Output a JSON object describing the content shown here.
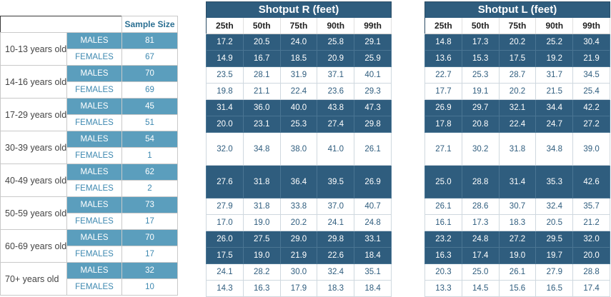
{
  "left_table": {
    "sample_size_header": "Sample Size",
    "groups": [
      {
        "age": "10-13 years old",
        "males_label": "MALES",
        "females_label": "FEMALES",
        "males": "81",
        "females": "67"
      },
      {
        "age": "14-16 years old",
        "males_label": "MALES",
        "females_label": "FEMALES",
        "males": "70",
        "females": "69"
      },
      {
        "age": "17-29 years old",
        "males_label": "MALES",
        "females_label": "FEMALES",
        "males": "45",
        "females": "51"
      },
      {
        "age": "30-39 years old",
        "males_label": "MALES",
        "females_label": "FEMALES",
        "males": "54",
        "females": "1"
      },
      {
        "age": "40-49 years old",
        "males_label": "MALES",
        "females_label": "FEMALES",
        "males": "62",
        "females": "2"
      },
      {
        "age": "50-59 years old",
        "males_label": "MALES",
        "females_label": "FEMALES",
        "males": "73",
        "females": "17"
      },
      {
        "age": "60-69 years old",
        "males_label": "MALES",
        "females_label": "FEMALES",
        "males": "70",
        "females": "17"
      },
      {
        "age": "70+ years old",
        "males_label": "MALES",
        "females_label": "FEMALES",
        "males": "32",
        "females": "10"
      }
    ]
  },
  "shotput_r": {
    "title": "Shotput R (feet)",
    "columns": [
      "25th",
      "50th",
      "75th",
      "90th",
      "99th"
    ],
    "rows": [
      {
        "style": "dark",
        "values": [
          "17.2",
          "20.5",
          "24.0",
          "25.8",
          "29.1"
        ]
      },
      {
        "style": "dark",
        "values": [
          "14.9",
          "16.7",
          "18.5",
          "20.9",
          "25.9"
        ]
      },
      {
        "style": "light",
        "values": [
          "23.5",
          "28.1",
          "31.9",
          "37.1",
          "40.1"
        ]
      },
      {
        "style": "light",
        "values": [
          "19.8",
          "21.1",
          "22.4",
          "23.6",
          "29.3"
        ]
      },
      {
        "style": "dark",
        "values": [
          "31.4",
          "36.0",
          "40.0",
          "43.8",
          "47.3"
        ]
      },
      {
        "style": "dark",
        "values": [
          "20.0",
          "23.1",
          "25.3",
          "27.4",
          "29.8"
        ]
      },
      {
        "style": "light",
        "tall": true,
        "values": [
          "32.0",
          "34.8",
          "38.0",
          "41.0",
          "26.1"
        ]
      },
      {
        "style": "dark",
        "tall": true,
        "values": [
          "27.6",
          "31.8",
          "36.4",
          "39.5",
          "26.9"
        ]
      },
      {
        "style": "light",
        "values": [
          "27.9",
          "31.8",
          "33.8",
          "37.0",
          "40.7"
        ]
      },
      {
        "style": "light",
        "values": [
          "17.0",
          "19.0",
          "20.2",
          "24.1",
          "24.8"
        ]
      },
      {
        "style": "dark",
        "values": [
          "26.0",
          "27.5",
          "29.0",
          "29.8",
          "33.1"
        ]
      },
      {
        "style": "dark",
        "values": [
          "17.5",
          "19.0",
          "21.9",
          "22.6",
          "18.4"
        ]
      },
      {
        "style": "light",
        "values": [
          "24.1",
          "28.2",
          "30.0",
          "32.4",
          "35.1"
        ]
      },
      {
        "style": "light",
        "values": [
          "14.3",
          "16.3",
          "17.9",
          "18.3",
          "18.4"
        ]
      }
    ]
  },
  "shotput_l": {
    "title": "Shotput L (feet)",
    "columns": [
      "25th",
      "50th",
      "75th",
      "90th",
      "99th"
    ],
    "rows": [
      {
        "style": "dark",
        "values": [
          "14.8",
          "17.3",
          "20.2",
          "25.2",
          "30.4"
        ]
      },
      {
        "style": "dark",
        "values": [
          "13.6",
          "15.3",
          "17.5",
          "19.2",
          "21.9"
        ]
      },
      {
        "style": "light",
        "values": [
          "22.7",
          "25.3",
          "28.7",
          "31.7",
          "34.5"
        ]
      },
      {
        "style": "light",
        "values": [
          "17.7",
          "19.1",
          "20.2",
          "21.5",
          "25.4"
        ]
      },
      {
        "style": "dark",
        "values": [
          "26.9",
          "29.7",
          "32.1",
          "34.4",
          "42.2"
        ]
      },
      {
        "style": "dark",
        "values": [
          "17.8",
          "20.8",
          "22.4",
          "24.7",
          "27.2"
        ]
      },
      {
        "style": "light",
        "tall": true,
        "values": [
          "27.1",
          "30.2",
          "31.8",
          "34.8",
          "39.0"
        ]
      },
      {
        "style": "dark",
        "tall": true,
        "values": [
          "25.0",
          "28.8",
          "31.4",
          "35.3",
          "42.6"
        ]
      },
      {
        "style": "light",
        "values": [
          "26.1",
          "28.6",
          "30.7",
          "32.4",
          "35.7"
        ]
      },
      {
        "style": "light",
        "values": [
          "16.1",
          "17.3",
          "18.3",
          "20.5",
          "21.2"
        ]
      },
      {
        "style": "dark",
        "values": [
          "23.2",
          "24.8",
          "27.2",
          "29.5",
          "32.0"
        ]
      },
      {
        "style": "dark",
        "values": [
          "16.3",
          "17.4",
          "19.0",
          "19.7",
          "20.0"
        ]
      },
      {
        "style": "light",
        "values": [
          "20.3",
          "25.0",
          "26.1",
          "27.9",
          "28.8"
        ]
      },
      {
        "style": "light",
        "values": [
          "13.3",
          "14.5",
          "15.6",
          "16.5",
          "17.4"
        ]
      }
    ]
  },
  "colors": {
    "dark": "#2f5d7e",
    "mid": "#5b9ebd",
    "text_blue": "#3d88b0"
  }
}
